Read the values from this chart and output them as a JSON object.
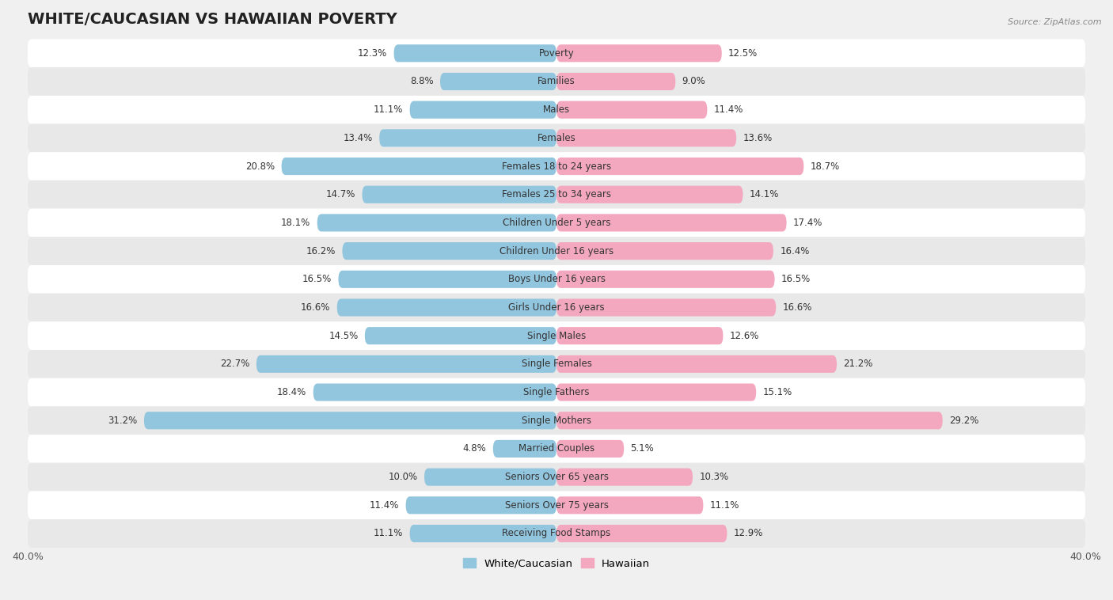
{
  "title": "WHITE/CAUCASIAN VS HAWAIIAN POVERTY",
  "source": "Source: ZipAtlas.com",
  "categories": [
    "Poverty",
    "Families",
    "Males",
    "Females",
    "Females 18 to 24 years",
    "Females 25 to 34 years",
    "Children Under 5 years",
    "Children Under 16 years",
    "Boys Under 16 years",
    "Girls Under 16 years",
    "Single Males",
    "Single Females",
    "Single Fathers",
    "Single Mothers",
    "Married Couples",
    "Seniors Over 65 years",
    "Seniors Over 75 years",
    "Receiving Food Stamps"
  ],
  "white_values": [
    12.3,
    8.8,
    11.1,
    13.4,
    20.8,
    14.7,
    18.1,
    16.2,
    16.5,
    16.6,
    14.5,
    22.7,
    18.4,
    31.2,
    4.8,
    10.0,
    11.4,
    11.1
  ],
  "hawaiian_values": [
    12.5,
    9.0,
    11.4,
    13.6,
    18.7,
    14.1,
    17.4,
    16.4,
    16.5,
    16.6,
    12.6,
    21.2,
    15.1,
    29.2,
    5.1,
    10.3,
    11.1,
    12.9
  ],
  "white_color": "#92c5de",
  "hawaiian_color": "#f4a8c0",
  "white_label": "White/Caucasian",
  "hawaiian_label": "Hawaiian",
  "xlim": 40.0,
  "row_colors": [
    "#ffffff",
    "#e8e8e8"
  ],
  "bar_height": 0.62,
  "title_fontsize": 14,
  "label_fontsize": 8.5,
  "value_fontsize": 8.5,
  "axis_tick_fontsize": 9,
  "fig_bg": "#f0f0f0"
}
